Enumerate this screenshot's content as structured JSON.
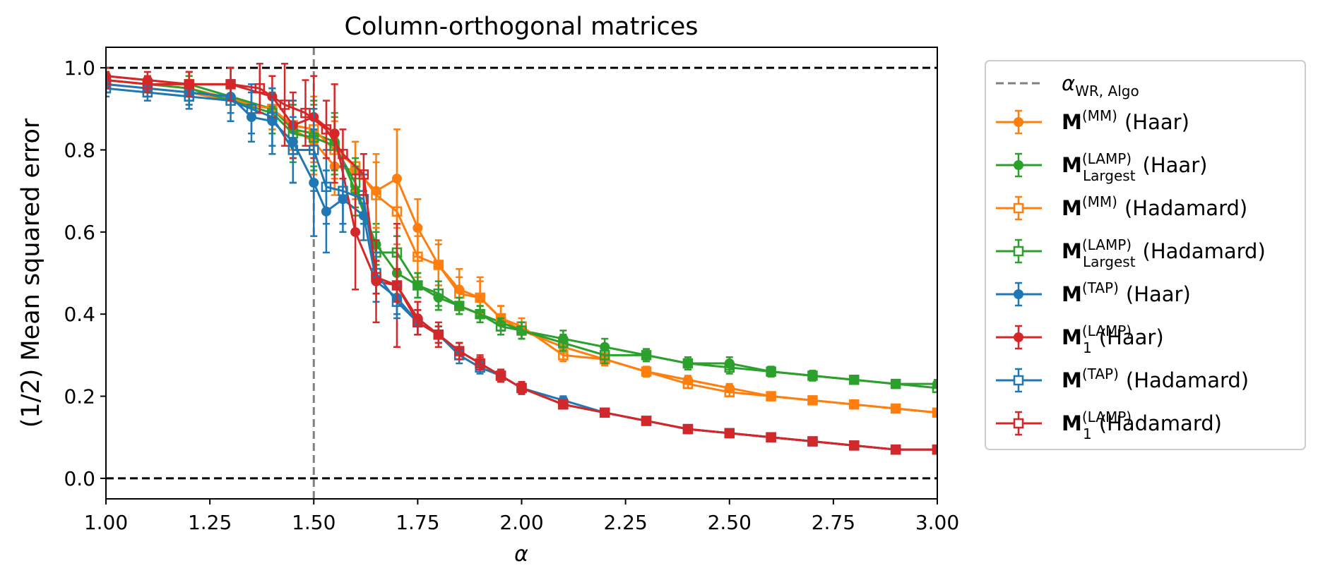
{
  "chart_data": {
    "type": "line",
    "title": "Column-orthogonal matrices",
    "xlabel": "α",
    "ylabel": "(1/2) Mean squared error",
    "xlim": [
      1.0,
      3.0
    ],
    "ylim": [
      -0.05,
      1.05
    ],
    "x_ticks": [
      "1.00",
      "1.25",
      "1.50",
      "1.75",
      "2.00",
      "2.25",
      "2.50",
      "2.75",
      "3.00"
    ],
    "y_ticks": [
      "0.0",
      "0.2",
      "0.4",
      "0.6",
      "0.8",
      "1.0"
    ],
    "grid": false,
    "legend_position": "outside-right",
    "reference_lines": [
      {
        "orientation": "horizontal",
        "y": 1.0,
        "style": "dashed",
        "color": "#000000"
      },
      {
        "orientation": "horizontal",
        "y": 0.0,
        "style": "dashed",
        "color": "#000000"
      },
      {
        "orientation": "vertical",
        "x": 1.5,
        "style": "dashed",
        "color": "#808080",
        "label_main": "α",
        "label_sub": "WR, Algo"
      }
    ],
    "series": [
      {
        "label_main": "M",
        "label_sup": "(MM)",
        "label_sub": "",
        "label_suffix": "(Haar)",
        "color": "#ff7f0e",
        "marker": "filled-circle",
        "x": [
          1.0,
          1.2,
          1.4,
          1.45,
          1.5,
          1.55,
          1.6,
          1.65,
          1.7,
          1.75,
          1.8,
          1.85,
          1.9,
          1.95,
          2.0,
          2.1,
          2.2,
          2.3,
          2.4,
          2.5,
          2.6,
          2.7,
          2.8,
          2.9,
          3.0
        ],
        "y": [
          0.97,
          0.95,
          0.9,
          0.85,
          0.82,
          0.76,
          0.75,
          0.7,
          0.73,
          0.61,
          0.52,
          0.46,
          0.44,
          0.39,
          0.36,
          0.32,
          0.29,
          0.26,
          0.24,
          0.22,
          0.2,
          0.19,
          0.18,
          0.17,
          0.16
        ],
        "err": [
          0.02,
          0.03,
          0.05,
          0.06,
          0.08,
          0.07,
          0.07,
          0.09,
          0.12,
          0.07,
          0.06,
          0.05,
          0.05,
          0.03,
          0.02,
          0.015,
          0.015,
          0.012,
          0.01,
          0.01,
          0.01,
          0.008,
          0.008,
          0.008,
          0.008
        ]
      },
      {
        "label_main": "M",
        "label_sup": "(LAMP)",
        "label_sub": "Largest",
        "label_suffix": "(Haar)",
        "color": "#2ca02c",
        "marker": "filled-circle",
        "x": [
          1.0,
          1.2,
          1.4,
          1.45,
          1.5,
          1.55,
          1.6,
          1.65,
          1.7,
          1.75,
          1.8,
          1.85,
          1.9,
          1.95,
          2.0,
          2.1,
          2.2,
          2.3,
          2.4,
          2.5,
          2.6,
          2.7,
          2.8,
          2.9,
          3.0
        ],
        "y": [
          0.98,
          0.96,
          0.9,
          0.85,
          0.84,
          0.82,
          0.7,
          0.57,
          0.5,
          0.47,
          0.44,
          0.42,
          0.4,
          0.38,
          0.36,
          0.34,
          0.32,
          0.3,
          0.28,
          0.28,
          0.26,
          0.25,
          0.24,
          0.23,
          0.23
        ],
        "err": [
          0.02,
          0.03,
          0.05,
          0.07,
          0.08,
          0.07,
          0.06,
          0.05,
          0.04,
          0.03,
          0.03,
          0.02,
          0.02,
          0.02,
          0.02,
          0.02,
          0.02,
          0.015,
          0.015,
          0.015,
          0.012,
          0.012,
          0.01,
          0.01,
          0.01
        ]
      },
      {
        "label_main": "M",
        "label_sup": "(MM)",
        "label_sub": "",
        "label_suffix": "(Hadamard)",
        "color": "#ff7f0e",
        "marker": "open-square",
        "x": [
          1.0,
          1.2,
          1.4,
          1.45,
          1.5,
          1.55,
          1.6,
          1.65,
          1.7,
          1.75,
          1.8,
          1.85,
          1.9,
          1.95,
          2.0,
          2.1,
          2.2,
          2.3,
          2.4,
          2.5,
          2.6,
          2.7,
          2.8,
          2.9,
          3.0
        ],
        "y": [
          0.96,
          0.94,
          0.9,
          0.86,
          0.85,
          0.8,
          0.76,
          0.69,
          0.65,
          0.54,
          0.52,
          0.45,
          0.44,
          0.39,
          0.37,
          0.3,
          0.29,
          0.26,
          0.23,
          0.21,
          0.2,
          0.19,
          0.18,
          0.17,
          0.16
        ],
        "err": [
          0.02,
          0.03,
          0.05,
          0.06,
          0.08,
          0.07,
          0.06,
          0.08,
          0.08,
          0.05,
          0.05,
          0.04,
          0.04,
          0.03,
          0.02,
          0.015,
          0.015,
          0.012,
          0.01,
          0.01,
          0.01,
          0.008,
          0.008,
          0.008,
          0.008
        ]
      },
      {
        "label_main": "M",
        "label_sup": "(LAMP)",
        "label_sub": "Largest",
        "label_suffix": "(Hadamard)",
        "color": "#2ca02c",
        "marker": "open-square",
        "x": [
          1.0,
          1.2,
          1.4,
          1.45,
          1.5,
          1.55,
          1.6,
          1.65,
          1.7,
          1.75,
          1.8,
          1.85,
          1.9,
          1.95,
          2.0,
          2.1,
          2.2,
          2.3,
          2.4,
          2.5,
          2.6,
          2.7,
          2.8,
          2.9,
          3.0
        ],
        "y": [
          0.97,
          0.95,
          0.89,
          0.84,
          0.83,
          0.81,
          0.72,
          0.55,
          0.55,
          0.47,
          0.45,
          0.42,
          0.4,
          0.37,
          0.36,
          0.33,
          0.3,
          0.3,
          0.28,
          0.27,
          0.26,
          0.25,
          0.24,
          0.23,
          0.22
        ],
        "err": [
          0.02,
          0.03,
          0.05,
          0.07,
          0.08,
          0.07,
          0.06,
          0.05,
          0.04,
          0.03,
          0.03,
          0.02,
          0.02,
          0.02,
          0.02,
          0.02,
          0.02,
          0.015,
          0.015,
          0.015,
          0.012,
          0.012,
          0.01,
          0.01,
          0.01
        ]
      },
      {
        "label_main": "M",
        "label_sup": "(TAP)",
        "label_sub": "",
        "label_suffix": "(Haar)",
        "color": "#1f77b4",
        "marker": "filled-circle",
        "x": [
          1.0,
          1.1,
          1.2,
          1.3,
          1.35,
          1.4,
          1.45,
          1.5,
          1.53,
          1.57,
          1.62,
          1.65,
          1.7,
          1.75,
          1.8,
          1.85,
          1.9,
          1.95,
          2.0,
          2.1,
          2.2,
          2.3,
          2.4,
          2.5,
          2.6,
          2.7,
          2.8,
          2.9,
          3.0
        ],
        "y": [
          0.96,
          0.95,
          0.94,
          0.93,
          0.88,
          0.87,
          0.82,
          0.72,
          0.65,
          0.68,
          0.64,
          0.48,
          0.44,
          0.38,
          0.35,
          0.31,
          0.28,
          0.25,
          0.22,
          0.19,
          0.16,
          0.14,
          0.12,
          0.11,
          0.1,
          0.09,
          0.08,
          0.07,
          0.07
        ],
        "err": [
          0.02,
          0.02,
          0.03,
          0.04,
          0.06,
          0.08,
          0.1,
          0.13,
          0.1,
          0.08,
          0.06,
          0.05,
          0.04,
          0.03,
          0.02,
          0.02,
          0.015,
          0.015,
          0.012,
          0.01,
          0.01,
          0.008,
          0.008,
          0.008,
          0.006,
          0.006,
          0.006,
          0.005,
          0.005
        ]
      },
      {
        "label_main": "M",
        "label_sup": "(LAMP)",
        "label_sub": "1",
        "label_suffix": "(Haar)",
        "color": "#d62728",
        "marker": "filled-circle",
        "x": [
          1.0,
          1.1,
          1.2,
          1.3,
          1.4,
          1.45,
          1.5,
          1.55,
          1.6,
          1.65,
          1.7,
          1.75,
          1.8,
          1.85,
          1.9,
          1.95,
          2.0,
          2.1,
          2.2,
          2.3,
          2.4,
          2.5,
          2.6,
          2.7,
          2.8,
          2.9,
          3.0
        ],
        "y": [
          0.98,
          0.97,
          0.96,
          0.96,
          0.93,
          0.86,
          0.88,
          0.84,
          0.6,
          0.48,
          0.47,
          0.39,
          0.35,
          0.31,
          0.28,
          0.25,
          0.22,
          0.18,
          0.16,
          0.14,
          0.12,
          0.11,
          0.1,
          0.09,
          0.08,
          0.07,
          0.07
        ],
        "err": [
          0.02,
          0.02,
          0.03,
          0.04,
          0.05,
          0.08,
          0.1,
          0.12,
          0.14,
          0.1,
          0.15,
          0.04,
          0.03,
          0.02,
          0.02,
          0.015,
          0.015,
          0.01,
          0.01,
          0.008,
          0.008,
          0.008,
          0.006,
          0.006,
          0.006,
          0.005,
          0.005
        ]
      },
      {
        "label_main": "M",
        "label_sup": "(TAP)",
        "label_sub": "",
        "label_suffix": "(Hadamard)",
        "color": "#1f77b4",
        "marker": "open-square",
        "x": [
          1.0,
          1.1,
          1.2,
          1.3,
          1.35,
          1.4,
          1.45,
          1.5,
          1.53,
          1.57,
          1.62,
          1.65,
          1.7,
          1.75,
          1.8,
          1.85,
          1.9,
          1.95,
          2.0,
          2.1,
          2.2,
          2.3,
          2.4,
          2.5,
          2.6,
          2.7,
          2.8,
          2.9,
          3.0
        ],
        "y": [
          0.95,
          0.94,
          0.93,
          0.92,
          0.9,
          0.88,
          0.8,
          0.8,
          0.71,
          0.7,
          0.68,
          0.5,
          0.43,
          0.38,
          0.35,
          0.3,
          0.27,
          0.25,
          0.22,
          0.18,
          0.16,
          0.14,
          0.12,
          0.11,
          0.1,
          0.09,
          0.08,
          0.07,
          0.07
        ],
        "err": [
          0.02,
          0.02,
          0.03,
          0.05,
          0.06,
          0.07,
          0.08,
          0.1,
          0.09,
          0.08,
          0.06,
          0.05,
          0.04,
          0.03,
          0.02,
          0.02,
          0.015,
          0.015,
          0.012,
          0.01,
          0.01,
          0.008,
          0.008,
          0.008,
          0.006,
          0.006,
          0.006,
          0.005,
          0.005
        ]
      },
      {
        "label_main": "M",
        "label_sup": "(LAMP)",
        "label_sub": "1",
        "label_suffix": "(Hadamard)",
        "color": "#d62728",
        "marker": "open-square",
        "x": [
          1.0,
          1.1,
          1.2,
          1.3,
          1.37,
          1.43,
          1.48,
          1.53,
          1.57,
          1.62,
          1.65,
          1.7,
          1.75,
          1.8,
          1.85,
          1.9,
          1.95,
          2.0,
          2.1,
          2.2,
          2.3,
          2.4,
          2.5,
          2.6,
          2.7,
          2.8,
          2.9,
          3.0
        ],
        "y": [
          0.97,
          0.96,
          0.96,
          0.96,
          0.95,
          0.91,
          0.89,
          0.85,
          0.79,
          0.74,
          0.49,
          0.47,
          0.38,
          0.35,
          0.31,
          0.28,
          0.25,
          0.22,
          0.18,
          0.16,
          0.14,
          0.12,
          0.11,
          0.1,
          0.09,
          0.08,
          0.07,
          0.07
        ],
        "err": [
          0.02,
          0.02,
          0.03,
          0.04,
          0.06,
          0.1,
          0.08,
          0.07,
          0.06,
          0.05,
          0.04,
          0.04,
          0.03,
          0.02,
          0.02,
          0.015,
          0.015,
          0.012,
          0.01,
          0.01,
          0.008,
          0.008,
          0.008,
          0.006,
          0.006,
          0.006,
          0.005,
          0.005
        ]
      }
    ]
  }
}
